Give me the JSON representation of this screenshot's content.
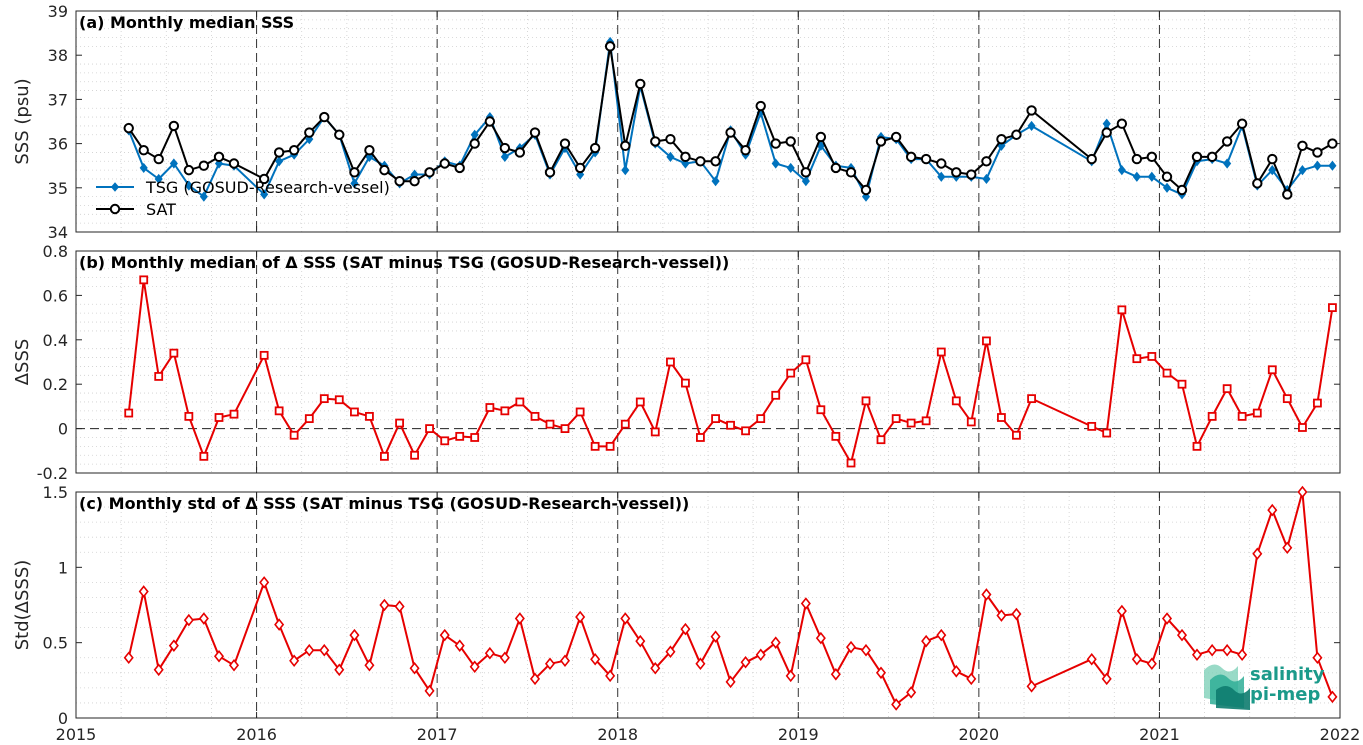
{
  "chart_data": [
    {
      "type": "line",
      "title": "(a) Monthly median SSS",
      "ylabel": "SSS (psu)",
      "xlim": [
        2015,
        2022
      ],
      "ylim": [
        34,
        39
      ],
      "yticks": [
        "34",
        "35",
        "36",
        "37",
        "38",
        "39"
      ],
      "xticks": [
        "2015",
        "2016",
        "2017",
        "2018",
        "2019",
        "2020",
        "2021",
        "2022"
      ],
      "grid": "minor-dotted",
      "legend_position": "bottom-left",
      "series": [
        {
          "name": "TSG (GOSUD-Research-vessel)",
          "color": "#0072BD",
          "marker": "diamond",
          "x": [
            2015.292,
            2015.375,
            2015.458,
            2015.542,
            2015.625,
            2015.708,
            2015.792,
            2015.875,
            2016.042,
            2016.125,
            2016.208,
            2016.292,
            2016.375,
            2016.458,
            2016.542,
            2016.625,
            2016.708,
            2016.792,
            2016.875,
            2016.958,
            2017.042,
            2017.125,
            2017.208,
            2017.292,
            2017.375,
            2017.458,
            2017.542,
            2017.625,
            2017.708,
            2017.792,
            2017.875,
            2017.958,
            2018.042,
            2018.125,
            2018.208,
            2018.292,
            2018.375,
            2018.458,
            2018.542,
            2018.625,
            2018.708,
            2018.792,
            2018.875,
            2018.958,
            2019.042,
            2019.125,
            2019.208,
            2019.292,
            2019.375,
            2019.458,
            2019.542,
            2019.625,
            2019.708,
            2019.792,
            2019.875,
            2019.958,
            2020.042,
            2020.125,
            2020.208,
            2020.292,
            2020.625,
            2020.708,
            2020.792,
            2020.875,
            2020.958,
            2021.042,
            2021.125,
            2021.208,
            2021.292,
            2021.375,
            2021.458,
            2021.542,
            2021.625,
            2021.708,
            2021.792,
            2021.875,
            2021.958
          ],
          "y": [
            36.3,
            35.45,
            35.2,
            35.55,
            35.05,
            34.8,
            35.55,
            35.5,
            34.85,
            35.6,
            35.75,
            36.1,
            36.6,
            36.2,
            35.1,
            35.7,
            35.5,
            35.1,
            35.3,
            35.3,
            35.6,
            35.5,
            36.2,
            36.6,
            35.7,
            35.9,
            36.2,
            35.3,
            35.9,
            35.3,
            35.8,
            38.3,
            35.4,
            37.3,
            36.0,
            35.7,
            35.55,
            35.6,
            35.15,
            36.3,
            35.75,
            36.7,
            35.55,
            35.45,
            35.15,
            35.95,
            35.5,
            35.45,
            34.8,
            36.15,
            36.1,
            35.65,
            35.65,
            35.25,
            35.25,
            35.25,
            35.2,
            35.95,
            36.2,
            36.4,
            35.6,
            36.45,
            35.4,
            35.25,
            35.25,
            35.0,
            34.85,
            35.6,
            35.65,
            35.55,
            36.4,
            35.05,
            35.4,
            34.95,
            35.4,
            35.5,
            35.5
          ]
        },
        {
          "name": "SAT",
          "color": "#000000",
          "marker": "circle",
          "x": [
            2015.292,
            2015.375,
            2015.458,
            2015.542,
            2015.625,
            2015.708,
            2015.792,
            2015.875,
            2016.042,
            2016.125,
            2016.208,
            2016.292,
            2016.375,
            2016.458,
            2016.542,
            2016.625,
            2016.708,
            2016.792,
            2016.875,
            2016.958,
            2017.042,
            2017.125,
            2017.208,
            2017.292,
            2017.375,
            2017.458,
            2017.542,
            2017.625,
            2017.708,
            2017.792,
            2017.875,
            2017.958,
            2018.042,
            2018.125,
            2018.208,
            2018.292,
            2018.375,
            2018.458,
            2018.542,
            2018.625,
            2018.708,
            2018.792,
            2018.875,
            2018.958,
            2019.042,
            2019.125,
            2019.208,
            2019.292,
            2019.375,
            2019.458,
            2019.542,
            2019.625,
            2019.708,
            2019.792,
            2019.875,
            2019.958,
            2020.042,
            2020.125,
            2020.208,
            2020.292,
            2020.625,
            2020.708,
            2020.792,
            2020.875,
            2020.958,
            2021.042,
            2021.125,
            2021.208,
            2021.292,
            2021.375,
            2021.458,
            2021.542,
            2021.625,
            2021.708,
            2021.792,
            2021.875,
            2021.958
          ],
          "y": [
            36.35,
            35.85,
            35.65,
            36.4,
            35.4,
            35.5,
            35.7,
            35.55,
            35.2,
            35.8,
            35.85,
            36.25,
            36.6,
            36.2,
            35.35,
            35.85,
            35.4,
            35.15,
            35.15,
            35.35,
            35.55,
            35.45,
            36.0,
            36.5,
            35.9,
            35.8,
            36.25,
            35.35,
            36.0,
            35.45,
            35.9,
            38.2,
            35.95,
            37.35,
            36.05,
            36.1,
            35.7,
            35.6,
            35.6,
            36.25,
            35.85,
            36.85,
            36.0,
            36.05,
            35.35,
            36.15,
            35.45,
            35.35,
            34.95,
            36.05,
            36.15,
            35.7,
            35.65,
            35.55,
            35.35,
            35.3,
            35.6,
            36.1,
            36.2,
            36.75,
            35.65,
            36.25,
            36.45,
            35.65,
            35.7,
            35.25,
            34.95,
            35.7,
            35.7,
            36.05,
            36.45,
            35.1,
            35.65,
            34.85,
            35.95,
            35.8,
            36.0
          ]
        }
      ]
    },
    {
      "type": "line",
      "title": "(b) Monthly median of Δ SSS (SAT minus TSG (GOSUD-Research-vessel))",
      "ylabel": "ΔSSS",
      "xlim": [
        2015,
        2022
      ],
      "ylim": [
        -0.2,
        0.8
      ],
      "yticks": [
        "-0.2",
        "0",
        "0.2",
        "0.4",
        "0.6",
        "0.8"
      ],
      "zero_line": "dashed",
      "grid": "minor-dotted",
      "series": [
        {
          "name": "",
          "color": "#E60000",
          "marker": "square",
          "x": [
            2015.292,
            2015.375,
            2015.458,
            2015.542,
            2015.625,
            2015.708,
            2015.792,
            2015.875,
            2016.042,
            2016.125,
            2016.208,
            2016.292,
            2016.375,
            2016.458,
            2016.542,
            2016.625,
            2016.708,
            2016.792,
            2016.875,
            2016.958,
            2017.042,
            2017.125,
            2017.208,
            2017.292,
            2017.375,
            2017.458,
            2017.542,
            2017.625,
            2017.708,
            2017.792,
            2017.875,
            2017.958,
            2018.042,
            2018.125,
            2018.208,
            2018.292,
            2018.375,
            2018.458,
            2018.542,
            2018.625,
            2018.708,
            2018.792,
            2018.875,
            2018.958,
            2019.042,
            2019.125,
            2019.208,
            2019.292,
            2019.375,
            2019.458,
            2019.542,
            2019.625,
            2019.708,
            2019.792,
            2019.875,
            2019.958,
            2020.042,
            2020.125,
            2020.208,
            2020.292,
            2020.625,
            2020.708,
            2020.792,
            2020.875,
            2020.958,
            2021.042,
            2021.125,
            2021.208,
            2021.292,
            2021.375,
            2021.458,
            2021.542,
            2021.625,
            2021.708,
            2021.792,
            2021.875,
            2021.958
          ],
          "y": [
            0.07,
            0.67,
            0.235,
            0.34,
            0.055,
            -0.125,
            0.05,
            0.065,
            0.33,
            0.08,
            -0.03,
            0.045,
            0.135,
            0.13,
            0.075,
            0.055,
            -0.125,
            0.025,
            -0.12,
            0.0,
            -0.055,
            -0.035,
            -0.04,
            0.095,
            0.08,
            0.12,
            0.055,
            0.02,
            0.0,
            0.075,
            -0.08,
            -0.08,
            0.02,
            0.12,
            -0.015,
            0.3,
            0.205,
            -0.04,
            0.045,
            0.015,
            -0.01,
            0.045,
            0.15,
            0.25,
            0.31,
            0.085,
            -0.035,
            -0.155,
            0.125,
            -0.05,
            0.045,
            0.025,
            0.035,
            0.345,
            0.125,
            0.03,
            0.395,
            0.05,
            -0.03,
            0.135,
            0.01,
            -0.02,
            0.535,
            0.315,
            0.325,
            0.25,
            0.2,
            -0.08,
            0.055,
            0.18,
            0.055,
            0.07,
            0.265,
            0.135,
            0.005,
            0.115,
            0.545
          ]
        }
      ]
    },
    {
      "type": "line",
      "title": "(c) Monthly std of Δ SSS (SAT minus TSG (GOSUD-Research-vessel))",
      "ylabel": "Std(ΔSSS)",
      "xlim": [
        2015,
        2022
      ],
      "ylim": [
        0,
        1.5
      ],
      "yticks": [
        "0",
        "0.5",
        "1",
        "1.5"
      ],
      "grid": "minor-dotted",
      "series": [
        {
          "name": "",
          "color": "#E60000",
          "marker": "diamond",
          "x": [
            2015.292,
            2015.375,
            2015.458,
            2015.542,
            2015.625,
            2015.708,
            2015.792,
            2015.875,
            2016.042,
            2016.125,
            2016.208,
            2016.292,
            2016.375,
            2016.458,
            2016.542,
            2016.625,
            2016.708,
            2016.792,
            2016.875,
            2016.958,
            2017.042,
            2017.125,
            2017.208,
            2017.292,
            2017.375,
            2017.458,
            2017.542,
            2017.625,
            2017.708,
            2017.792,
            2017.875,
            2017.958,
            2018.042,
            2018.125,
            2018.208,
            2018.292,
            2018.375,
            2018.458,
            2018.542,
            2018.625,
            2018.708,
            2018.792,
            2018.875,
            2018.958,
            2019.042,
            2019.125,
            2019.208,
            2019.292,
            2019.375,
            2019.458,
            2019.542,
            2019.625,
            2019.708,
            2019.792,
            2019.875,
            2019.958,
            2020.042,
            2020.125,
            2020.208,
            2020.292,
            2020.625,
            2020.708,
            2020.792,
            2020.875,
            2020.958,
            2021.042,
            2021.125,
            2021.208,
            2021.292,
            2021.375,
            2021.458,
            2021.542,
            2021.625,
            2021.708,
            2021.792,
            2021.875,
            2021.958
          ],
          "y": [
            0.4,
            0.84,
            0.32,
            0.48,
            0.65,
            0.66,
            0.41,
            0.35,
            0.9,
            0.62,
            0.38,
            0.45,
            0.45,
            0.32,
            0.55,
            0.35,
            0.75,
            0.74,
            0.33,
            0.18,
            0.55,
            0.48,
            0.34,
            0.43,
            0.4,
            0.66,
            0.26,
            0.36,
            0.38,
            0.67,
            0.39,
            0.28,
            0.66,
            0.51,
            0.33,
            0.44,
            0.59,
            0.36,
            0.54,
            0.24,
            0.37,
            0.42,
            0.5,
            0.28,
            0.76,
            0.53,
            0.29,
            0.47,
            0.45,
            0.3,
            0.09,
            0.17,
            0.51,
            0.55,
            0.31,
            0.26,
            0.82,
            0.68,
            0.69,
            0.21,
            0.39,
            0.26,
            0.71,
            0.39,
            0.36,
            0.66,
            0.55,
            0.42,
            0.45,
            0.45,
            0.42,
            1.09,
            1.38,
            1.13,
            1.5,
            0.4,
            0.14
          ]
        }
      ]
    }
  ],
  "logo": {
    "line1": "salinity",
    "line2": "pi-mep",
    "color": "#1b9a8a"
  }
}
